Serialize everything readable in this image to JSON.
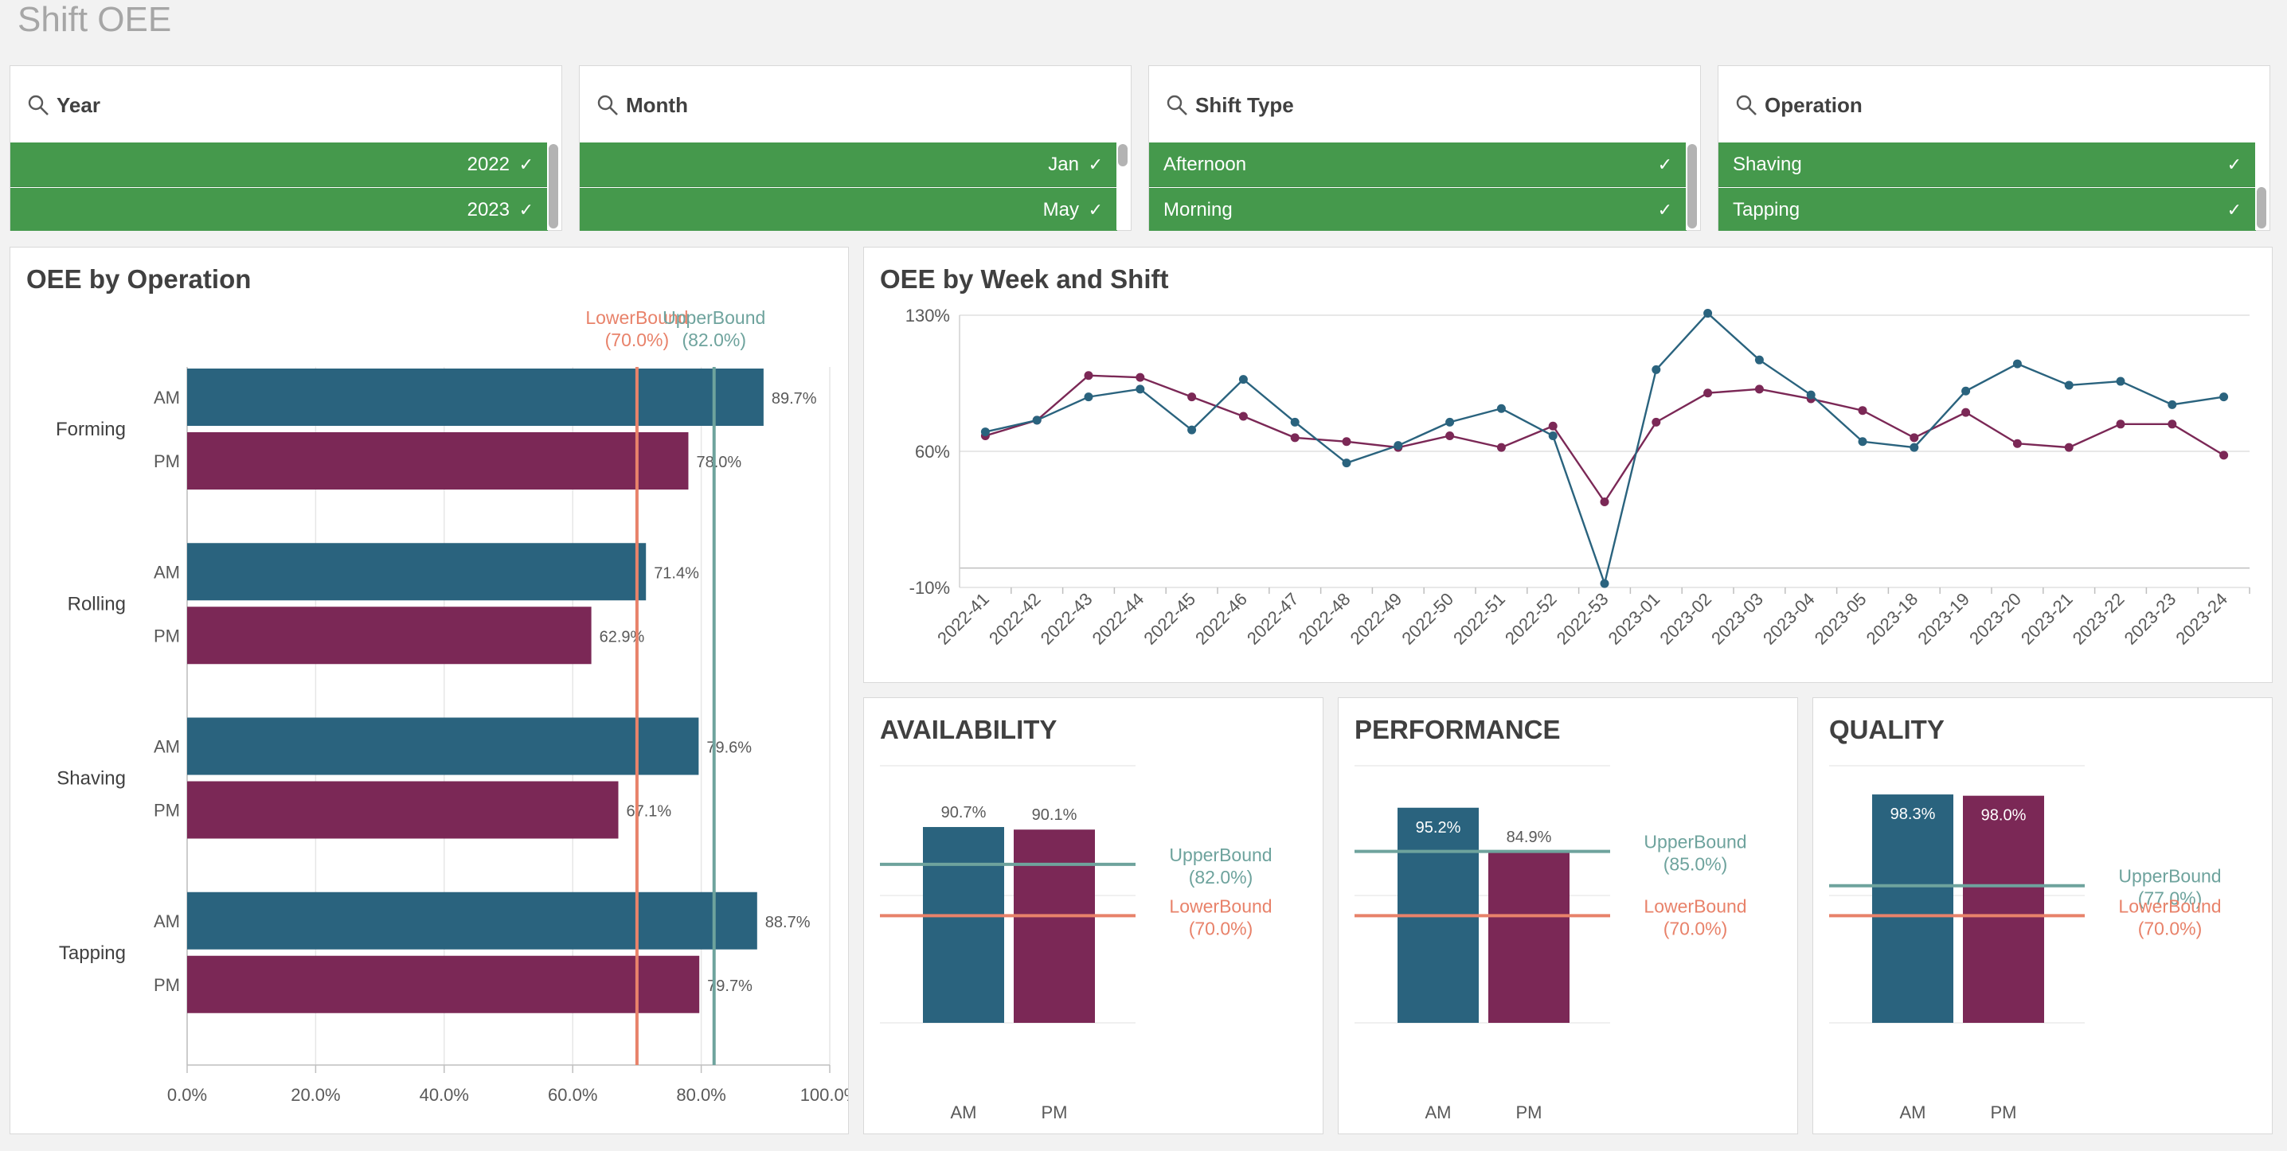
{
  "app": {
    "title": "Shift OEE"
  },
  "filters": [
    {
      "title": "Year",
      "items": [
        "2022",
        "2023"
      ],
      "align": "right",
      "thumb": "full"
    },
    {
      "title": "Month",
      "items": [
        "Jan",
        "May"
      ],
      "align": "right",
      "thumb": "top"
    },
    {
      "title": "Shift Type",
      "items": [
        "Afternoon",
        "Morning"
      ],
      "align": "left",
      "thumb": "full"
    },
    {
      "title": "Operation",
      "items": [
        "Shaving",
        "Tapping"
      ],
      "align": "left",
      "thumb": "bottom"
    }
  ],
  "colors": {
    "am": "#2a637e",
    "pm": "#7b2856",
    "upper": "#6ea39d",
    "lower": "#e8826a",
    "selected": "#45994c"
  },
  "charts": {
    "oee_by_operation": {
      "title": "OEE by Operation",
      "chart_data": {
        "type": "bar",
        "orientation": "horizontal",
        "categories": [
          "Forming",
          "Rolling",
          "Shaving",
          "Tapping"
        ],
        "series": [
          {
            "name": "AM",
            "values": [
              89.7,
              71.4,
              79.6,
              88.7
            ]
          },
          {
            "name": "PM",
            "values": [
              78.0,
              62.9,
              67.1,
              79.7
            ]
          }
        ],
        "value_labels": {
          "AM": [
            "89.7%",
            "71.4%",
            "79.6%",
            "88.7%"
          ],
          "PM": [
            "78.0%",
            "62.9%",
            "67.1%",
            "79.7%"
          ]
        },
        "xlim": [
          0,
          100
        ],
        "xticks": [
          "0.0%",
          "20.0%",
          "40.0%",
          "60.0%",
          "80.0%",
          "100.0%"
        ],
        "reference_lines": [
          {
            "label": "LowerBound",
            "value_label": "(70.0%)",
            "value": 70.0
          },
          {
            "label": "UpperBound",
            "value_label": "(82.0%)",
            "value": 82.0
          }
        ]
      }
    },
    "oee_by_week": {
      "title": "OEE by Week and Shift",
      "chart_data": {
        "type": "line",
        "categories": [
          "2022-41",
          "2022-42",
          "2022-43",
          "2022-44",
          "2022-45",
          "2022-46",
          "2022-47",
          "2022-48",
          "2022-49",
          "2022-50",
          "2022-51",
          "2022-52",
          "2022-53",
          "2023-01",
          "2023-02",
          "2023-03",
          "2023-04",
          "2023-05",
          "2023-18",
          "2023-19",
          "2023-20",
          "2023-21",
          "2023-22",
          "2023-23",
          "2023-24"
        ],
        "series": [
          {
            "name": "AM",
            "values": [
              70,
              76,
              88,
              92,
              71,
              97,
              75,
              54,
              63,
              75,
              82,
              68,
              -8,
              102,
              131,
              107,
              89,
              65,
              62,
              91,
              105,
              94,
              96,
              84,
              88
            ]
          },
          {
            "name": "PM",
            "values": [
              68,
              76,
              99,
              98,
              88,
              78,
              67,
              65,
              62,
              68,
              62,
              73,
              34,
              75,
              90,
              92,
              87,
              81,
              67,
              80,
              64,
              62,
              74,
              74,
              58
            ]
          }
        ],
        "ylim": [
          -10,
          130
        ],
        "yticks": [
          "130%",
          "60%",
          "-10%"
        ]
      }
    },
    "availability": {
      "title": "AVAILABILITY",
      "chart_data": {
        "type": "bar",
        "categories": [
          "AM",
          "PM"
        ],
        "values": [
          90.7,
          90.1
        ],
        "value_labels": [
          "90.7%",
          "90.1%"
        ],
        "ylim": [
          45,
          105
        ],
        "reference_lines": [
          {
            "label": "UpperBound",
            "value_label": "(82.0%)",
            "value": 82.0
          },
          {
            "label": "LowerBound",
            "value_label": "(70.0%)",
            "value": 70.0
          }
        ]
      }
    },
    "performance": {
      "title": "PERFORMANCE",
      "chart_data": {
        "type": "bar",
        "categories": [
          "AM",
          "PM"
        ],
        "values": [
          95.2,
          84.9
        ],
        "value_labels": [
          "95.2%",
          "84.9%"
        ],
        "ylim": [
          45,
          105
        ],
        "reference_lines": [
          {
            "label": "UpperBound",
            "value_label": "(85.0%)",
            "value": 85.0
          },
          {
            "label": "LowerBound",
            "value_label": "(70.0%)",
            "value": 70.0
          }
        ]
      }
    },
    "quality": {
      "title": "QUALITY",
      "chart_data": {
        "type": "bar",
        "categories": [
          "AM",
          "PM"
        ],
        "values": [
          98.3,
          98.0
        ],
        "value_labels": [
          "98.3%",
          "98.0%"
        ],
        "ylim": [
          45,
          105
        ],
        "reference_lines": [
          {
            "label": "UpperBound",
            "value_label": "(77.0%)",
            "value": 77.0
          },
          {
            "label": "LowerBound",
            "value_label": "(70.0%)",
            "value": 70.0
          }
        ]
      }
    }
  }
}
